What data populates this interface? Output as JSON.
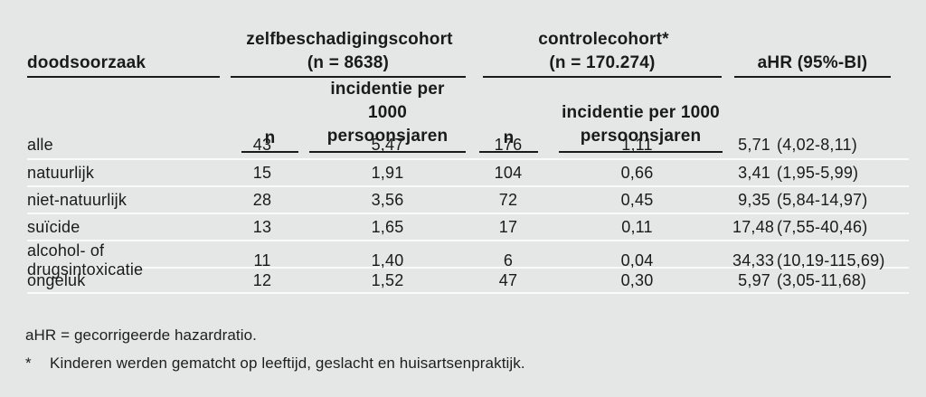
{
  "colors": {
    "background": "#e5e6e6",
    "text": "#1a1a1a",
    "header_rule": "#1a1a1a",
    "row_separator": "#fafafa"
  },
  "chart_data": {
    "type": "table",
    "row_header": "doodsoorzaak",
    "column_groups": [
      {
        "label": "zelfbeschadigingscohort",
        "sublabel": "(n = 8638)"
      },
      {
        "label": "controlecohort*",
        "sublabel": "(n = 170.274)"
      }
    ],
    "ahr_header": "aHR (95%-BI)",
    "subheaders": {
      "n1": "n",
      "n2": "n",
      "inc_line1": "incidentie per 1000",
      "inc_line2": "persoonsjaren"
    },
    "rows": [
      {
        "label": "alle",
        "n1": "43",
        "inc1": "5,47",
        "n2": "176",
        "inc2": "1,11",
        "ahr": "5,71",
        "ci": "(4,02-8,11)"
      },
      {
        "label": "natuurlijk",
        "n1": "15",
        "inc1": "1,91",
        "n2": "104",
        "inc2": "0,66",
        "ahr": "3,41",
        "ci": "(1,95-5,99)"
      },
      {
        "label": "niet-natuurlijk",
        "n1": "28",
        "inc1": "3,56",
        "n2": "72",
        "inc2": "0,45",
        "ahr": "9,35",
        "ci": "(5,84-14,97)"
      },
      {
        "label": "suïcide",
        "n1": "13",
        "inc1": "1,65",
        "n2": "17",
        "inc2": "0,11",
        "ahr": "17,48",
        "ci": "(7,55-40,46)"
      },
      {
        "label": "alcohol- of drugsintoxicatie",
        "n1": "11",
        "inc1": "1,40",
        "n2": "6",
        "inc2": "0,04",
        "ahr": "34,33",
        "ci": "(10,19-115,69)"
      },
      {
        "label": "ongeluk",
        "n1": "12",
        "inc1": "1,52",
        "n2": "47",
        "inc2": "0,30",
        "ahr": "5,97",
        "ci": "(3,05-11,68)"
      }
    ],
    "footnotes": {
      "line1": "aHR = gecorrigeerde hazardratio.",
      "line2_marker": "*",
      "line2": "Kinderen werden gematcht op leeftijd, geslacht en huisartsenpraktijk."
    }
  }
}
